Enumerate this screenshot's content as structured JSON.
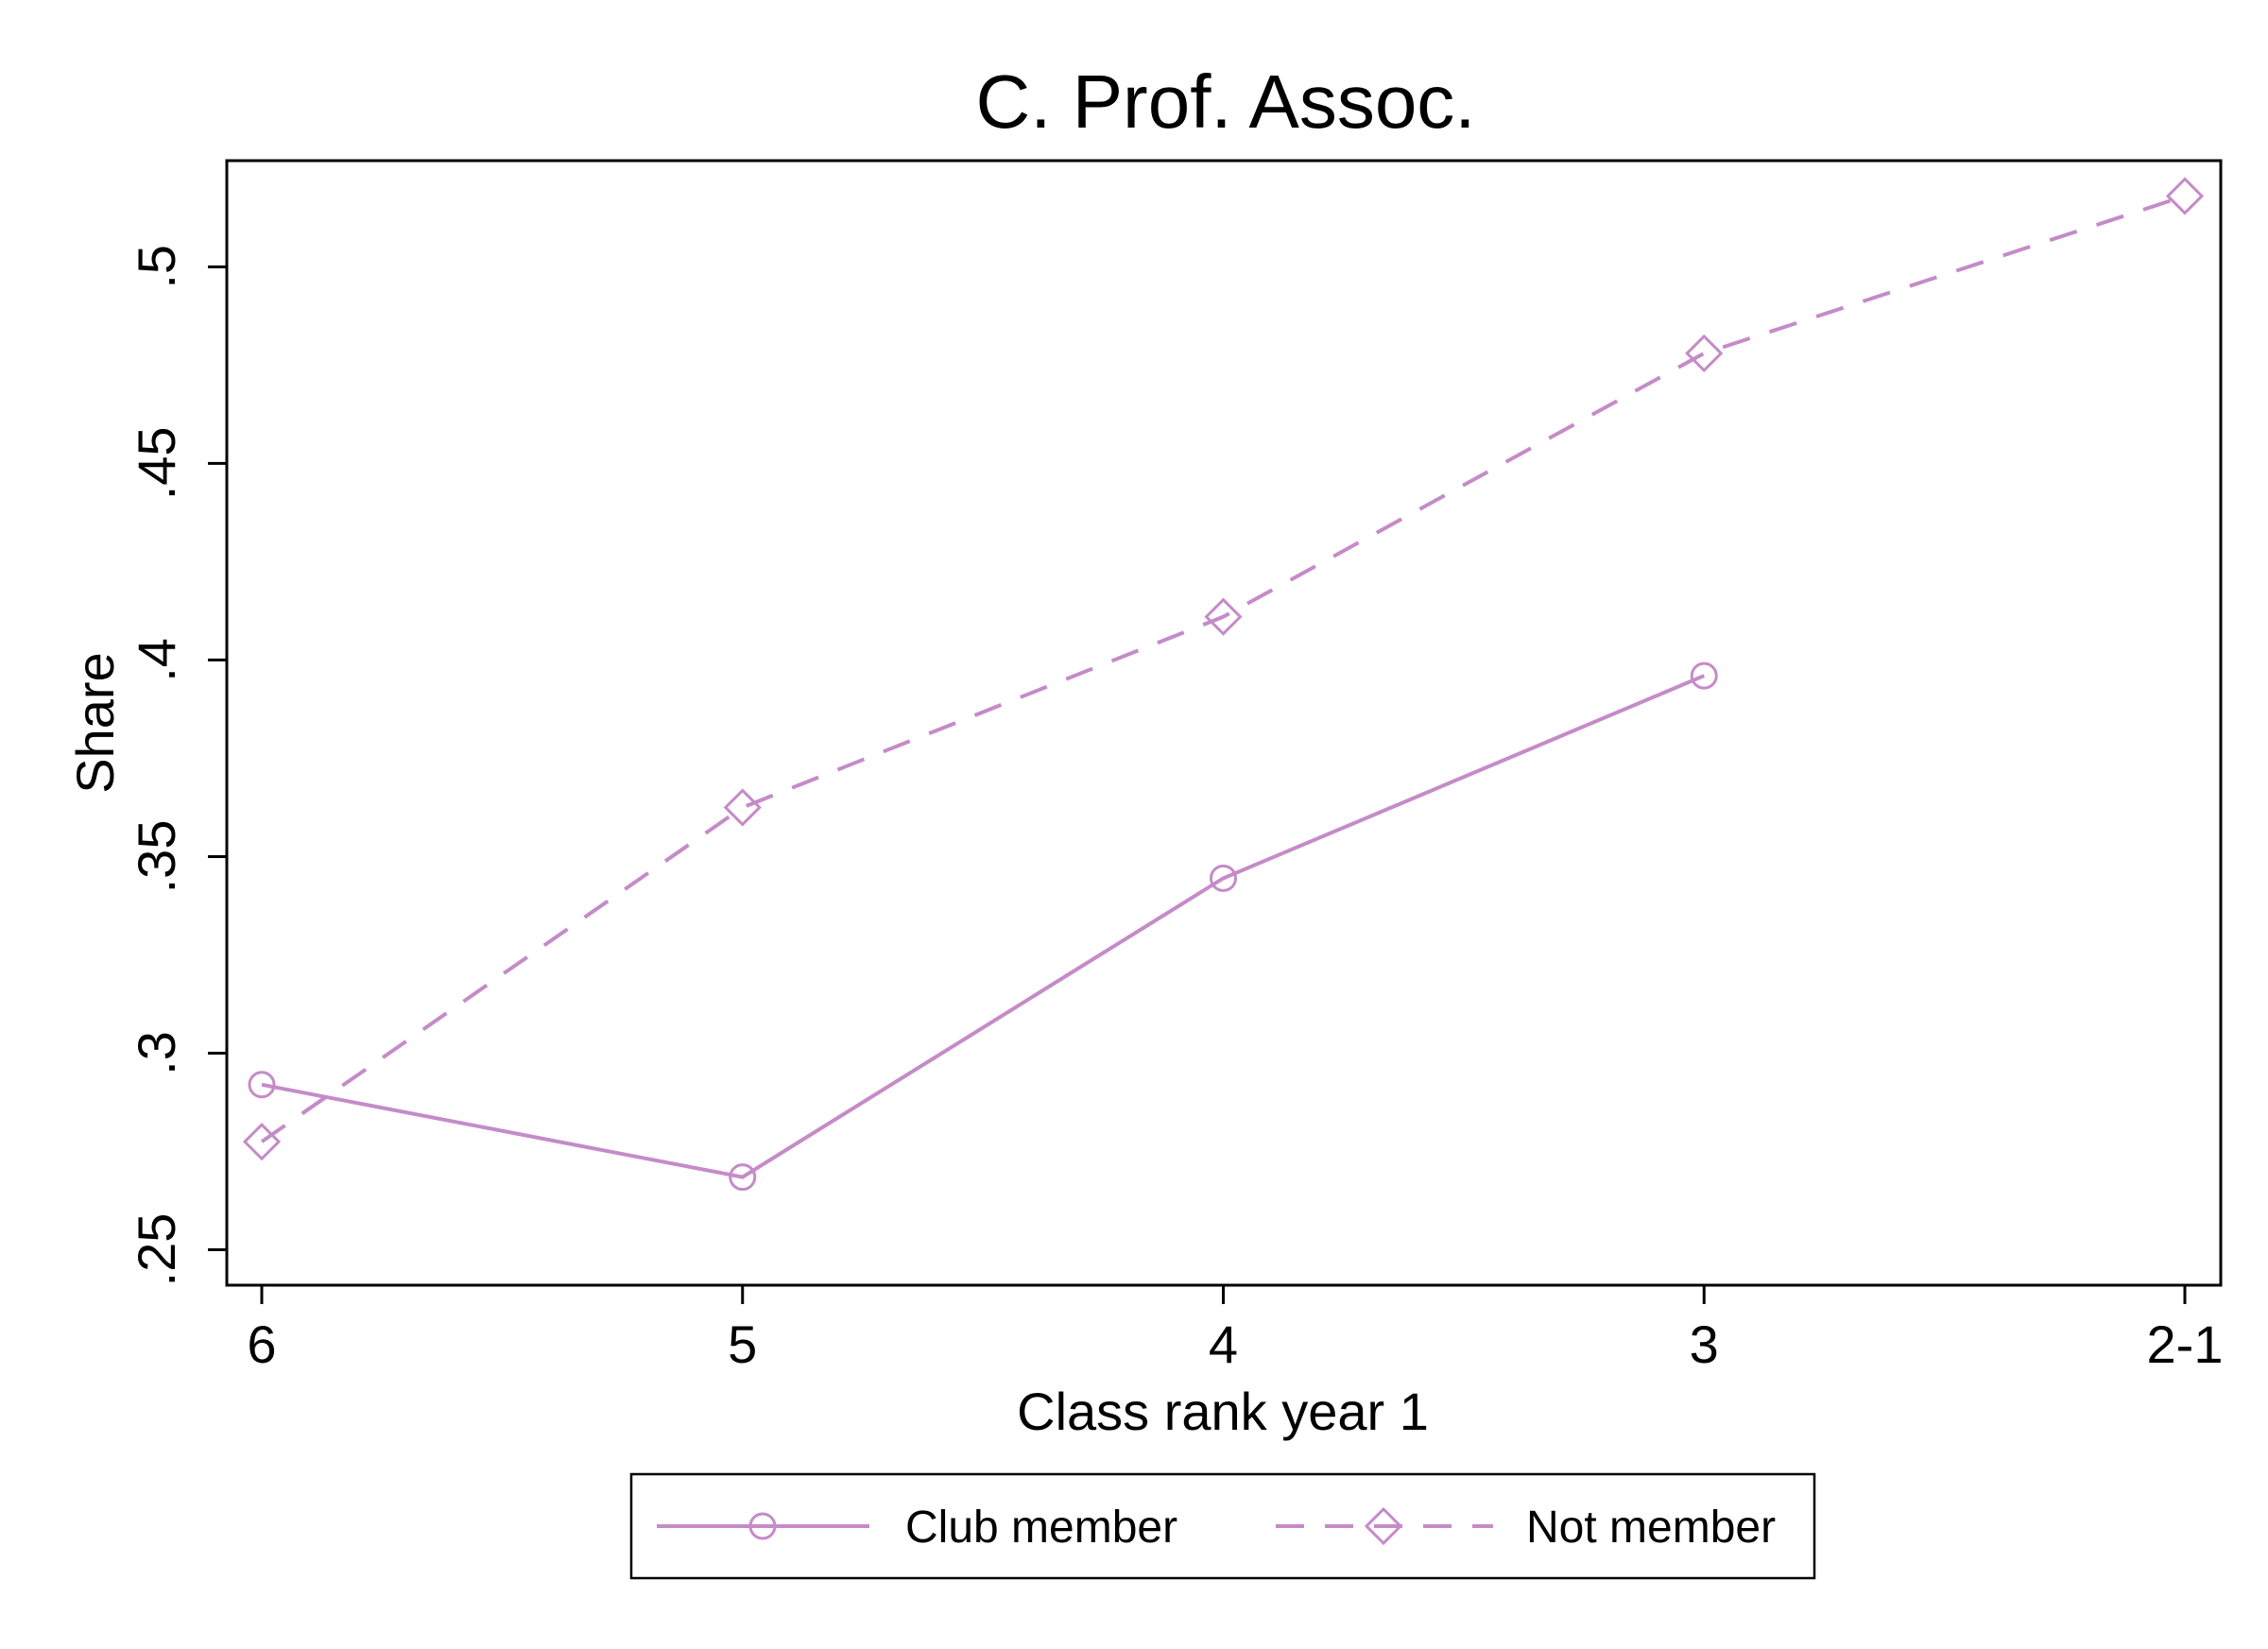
{
  "chart_data": {
    "type": "line",
    "title": "C. Prof. Assoc.",
    "xlabel": "Class rank year 1",
    "ylabel": "Share",
    "categories": [
      "6",
      "5",
      "4",
      "3",
      "2-1"
    ],
    "yticks": [
      0.25,
      0.3,
      0.35,
      0.4,
      0.45,
      0.5
    ],
    "ytick_labels": [
      ".25",
      ".3",
      ".35",
      ".4",
      ".45",
      ".5"
    ],
    "ylim": [
      0.241,
      0.527
    ],
    "grid": false,
    "legend_position": "bottom",
    "series": [
      {
        "name": "Club member",
        "marker": "circle",
        "line_style": "solid",
        "values": [
          0.292,
          0.2685,
          0.3445,
          0.396,
          null
        ]
      },
      {
        "name": "Not member",
        "marker": "diamond",
        "line_style": "dashed",
        "values": [
          0.2775,
          0.3625,
          0.411,
          0.478,
          0.518
        ]
      }
    ],
    "colors": {
      "series": "#c58bc8",
      "axis": "#000000"
    }
  }
}
